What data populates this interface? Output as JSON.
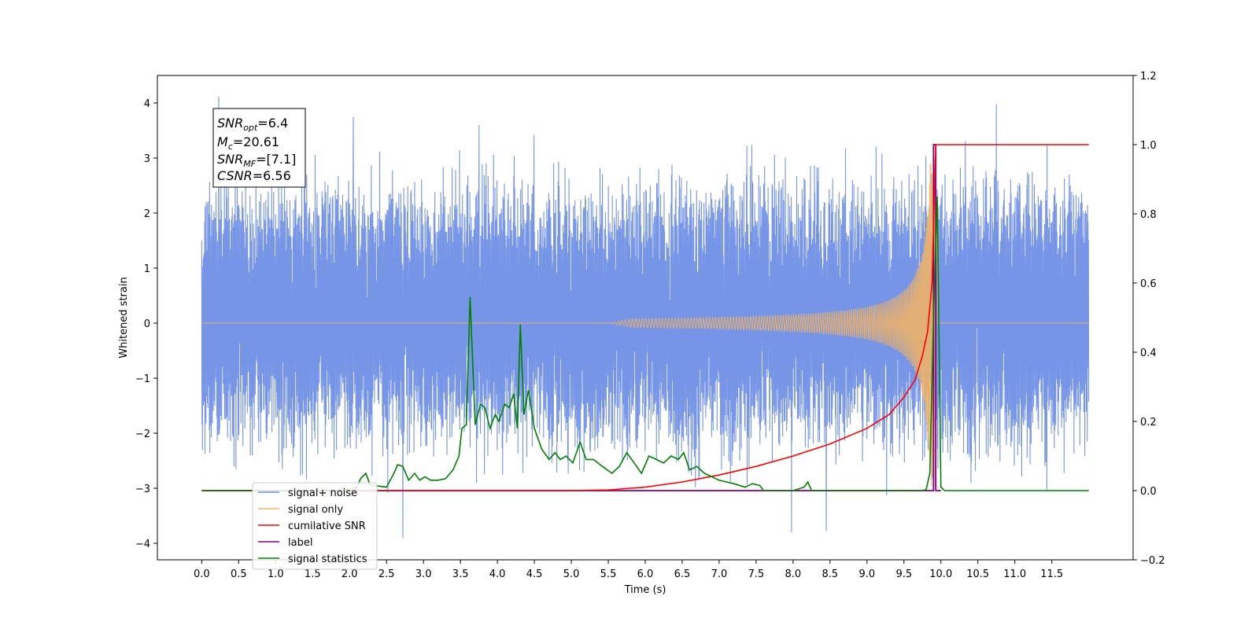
{
  "chart_data": {
    "type": "line",
    "xlabel": "Time (s)",
    "ylabel": "Whitened strain",
    "xlim": [
      -0.6,
      12.6
    ],
    "ylim": [
      -4.3,
      4.5
    ],
    "y2lim": [
      -0.2,
      1.2
    ],
    "x_ticks": [
      "0.0",
      "0.5",
      "1.0",
      "1.5",
      "2.0",
      "2.5",
      "3.0",
      "3.5",
      "4.0",
      "4.5",
      "5.0",
      "5.5",
      "6.0",
      "6.5",
      "7.0",
      "7.5",
      "8.0",
      "8.5",
      "9.0",
      "9.5",
      "10.0",
      "10.5",
      "11.0",
      "11.5"
    ],
    "y_ticks": [
      "4",
      "3",
      "2",
      "1",
      "0",
      "−1",
      "−2",
      "−3",
      "−4"
    ],
    "y2_ticks": [
      "1.2",
      "1.0",
      "0.8",
      "0.6",
      "0.4",
      "0.2",
      "0.0",
      "−0.2"
    ],
    "noise": {
      "t_start": 0.0,
      "t_end": 12.0,
      "typical_high": 1.9,
      "typical_low": -1.6,
      "peaks": [
        [
          0.23,
          4.12
        ],
        [
          2.05,
          3.75
        ],
        [
          3.75,
          3.6
        ],
        [
          10.75,
          3.98
        ],
        [
          2.72,
          -3.9
        ],
        [
          7.98,
          -3.8
        ],
        [
          8.45,
          -3.78
        ]
      ]
    },
    "chirp": {
      "t_start": 5.5,
      "t_merge": 9.93,
      "max_amplitude": 3.0
    },
    "cumulative_snr": {
      "points": [
        [
          0.0,
          0.0
        ],
        [
          5.0,
          0.0
        ],
        [
          5.5,
          0.002
        ],
        [
          6.0,
          0.01
        ],
        [
          6.5,
          0.025
        ],
        [
          7.0,
          0.045
        ],
        [
          7.5,
          0.07
        ],
        [
          8.0,
          0.1
        ],
        [
          8.5,
          0.135
        ],
        [
          9.0,
          0.18
        ],
        [
          9.3,
          0.22
        ],
        [
          9.5,
          0.27
        ],
        [
          9.65,
          0.32
        ],
        [
          9.75,
          0.39
        ],
        [
          9.82,
          0.46
        ],
        [
          9.88,
          0.6
        ],
        [
          9.93,
          1.0
        ],
        [
          12.0,
          1.0
        ]
      ]
    },
    "label": {
      "points": [
        [
          0.0,
          0.0
        ],
        [
          9.9,
          0.0
        ],
        [
          9.9,
          1.0
        ],
        [
          9.93,
          1.0
        ],
        [
          9.93,
          0.0
        ],
        [
          10.0,
          0.0
        ]
      ]
    },
    "signal_statistics": {
      "points": [
        [
          0.0,
          0.0
        ],
        [
          1.8,
          0.0
        ],
        [
          2.0,
          0.003
        ],
        [
          2.1,
          0.01
        ],
        [
          2.15,
          0.035
        ],
        [
          2.22,
          0.05
        ],
        [
          2.28,
          0.015
        ],
        [
          2.4,
          0.013
        ],
        [
          2.5,
          0.01
        ],
        [
          2.6,
          0.05
        ],
        [
          2.65,
          0.075
        ],
        [
          2.72,
          0.07
        ],
        [
          2.8,
          0.03
        ],
        [
          2.88,
          0.05
        ],
        [
          2.95,
          0.03
        ],
        [
          3.02,
          0.04
        ],
        [
          3.1,
          0.03
        ],
        [
          3.2,
          0.03
        ],
        [
          3.3,
          0.035
        ],
        [
          3.4,
          0.06
        ],
        [
          3.48,
          0.1
        ],
        [
          3.52,
          0.18
        ],
        [
          3.58,
          0.19
        ],
        [
          3.63,
          0.56
        ],
        [
          3.7,
          0.19
        ],
        [
          3.77,
          0.25
        ],
        [
          3.83,
          0.24
        ],
        [
          3.9,
          0.18
        ],
        [
          3.97,
          0.22
        ],
        [
          4.02,
          0.2
        ],
        [
          4.1,
          0.25
        ],
        [
          4.16,
          0.24
        ],
        [
          4.22,
          0.28
        ],
        [
          4.27,
          0.18
        ],
        [
          4.31,
          0.48
        ],
        [
          4.36,
          0.22
        ],
        [
          4.42,
          0.29
        ],
        [
          4.5,
          0.18
        ],
        [
          4.6,
          0.12
        ],
        [
          4.7,
          0.09
        ],
        [
          4.78,
          0.11
        ],
        [
          4.85,
          0.09
        ],
        [
          4.93,
          0.1
        ],
        [
          5.02,
          0.08
        ],
        [
          5.12,
          0.14
        ],
        [
          5.2,
          0.09
        ],
        [
          5.3,
          0.09
        ],
        [
          5.42,
          0.07
        ],
        [
          5.55,
          0.05
        ],
        [
          5.65,
          0.07
        ],
        [
          5.75,
          0.11
        ],
        [
          5.85,
          0.08
        ],
        [
          5.95,
          0.05
        ],
        [
          6.05,
          0.1
        ],
        [
          6.15,
          0.09
        ],
        [
          6.25,
          0.08
        ],
        [
          6.35,
          0.1
        ],
        [
          6.45,
          0.09
        ],
        [
          6.52,
          0.11
        ],
        [
          6.6,
          0.06
        ],
        [
          6.7,
          0.07
        ],
        [
          6.8,
          0.05
        ],
        [
          6.9,
          0.04
        ],
        [
          7.0,
          0.03
        ],
        [
          7.1,
          0.025
        ],
        [
          7.2,
          0.02
        ],
        [
          7.35,
          0.01
        ],
        [
          7.45,
          0.02
        ],
        [
          7.55,
          0.015
        ],
        [
          7.6,
          0.0
        ],
        [
          8.0,
          0.0
        ],
        [
          8.15,
          0.01
        ],
        [
          8.2,
          0.025
        ],
        [
          8.25,
          0.0
        ],
        [
          9.75,
          0.0
        ],
        [
          9.8,
          0.003
        ],
        [
          9.85,
          0.05
        ],
        [
          9.9,
          0.5
        ],
        [
          9.95,
          0.85
        ],
        [
          10.0,
          0.01
        ],
        [
          10.05,
          0.0
        ],
        [
          12.0,
          0.0
        ]
      ]
    },
    "legend": {
      "position": "lower-left",
      "items": [
        {
          "label": "signal+ noise",
          "color": "#6f8fe6"
        },
        {
          "label": "signal only",
          "color": "#f5b461"
        },
        {
          "label": "cumilative SNR",
          "color": "#ff0000"
        },
        {
          "label": "label",
          "color": "#800080"
        },
        {
          "label": "signal statistics",
          "color": "#008000"
        }
      ]
    },
    "annotation": {
      "snr_opt_label": "SNR",
      "snr_opt_sub": "opt",
      "snr_opt_value": "=6.4",
      "mc_label": "M",
      "mc_sub": "c",
      "mc_value": "=20.61",
      "snr_mf_label": "SNR",
      "snr_mf_sub": "MF",
      "snr_mf_value": "=[7.1]",
      "csnr_label": "CSNR",
      "csnr_value": "=6.56"
    },
    "colors": {
      "noise": "#6f8fe6",
      "signal": "#f5b461",
      "cumulative": "#ff0000",
      "label": "#800080",
      "statistics": "#008000"
    }
  }
}
